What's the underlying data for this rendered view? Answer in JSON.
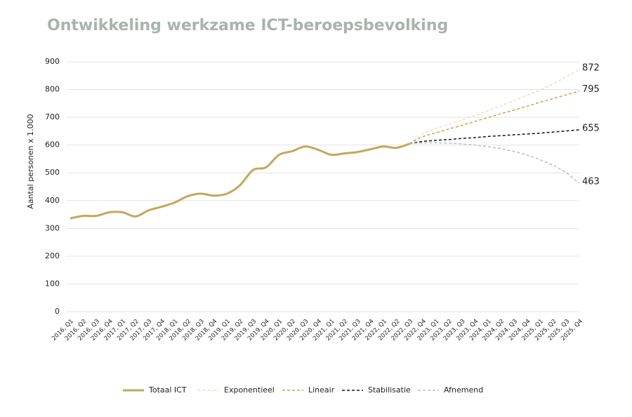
{
  "chart_data": {
    "type": "line",
    "title": "Ontwikkeling werkzame ICT-beroepsbevolking",
    "y_label": "Aantal personen x 1.000",
    "categories": [
      "2016, Q1",
      "2016, Q2",
      "2016, Q3",
      "2016, Q4",
      "2017, Q1",
      "2017, Q2",
      "2017, Q3",
      "2017, Q4",
      "2018, Q1",
      "2018, Q2",
      "2018, Q3",
      "2018, Q4",
      "2019, Q1",
      "2019, Q2",
      "2019, Q3",
      "2019, Q4",
      "2020, Q1",
      "2020, Q2",
      "2020, Q3",
      "2020, Q4",
      "2021, Q1",
      "2021, Q2",
      "2021, Q3",
      "2021, Q4",
      "2022, Q1",
      "2022, Q2",
      "2022, Q3",
      "2022, Q4",
      "2023, Q1",
      "2023, Q2",
      "2023, Q3",
      "2023, Q4",
      "2024, Q1",
      "2024, Q2",
      "2024, Q3",
      "2024, Q4",
      "2025, Q1",
      "2025, Q2",
      "2025, Q3",
      "2025, Q4"
    ],
    "series": [
      {
        "name": "Totaal ICT",
        "color": "#c6a75a",
        "dashed": false,
        "values": [
          336,
          345,
          345,
          358,
          358,
          343,
          365,
          378,
          393,
          416,
          425,
          418,
          425,
          455,
          510,
          520,
          565,
          578,
          595,
          583,
          565,
          570,
          575,
          585,
          595,
          590,
          605,
          null,
          null,
          null,
          null,
          null,
          null,
          null,
          null,
          null,
          null,
          null,
          null,
          null
        ]
      },
      {
        "name": "Exponentieel",
        "color": "#e9dec4",
        "dashed": true,
        "values": [
          null,
          null,
          null,
          null,
          null,
          null,
          null,
          null,
          null,
          null,
          null,
          null,
          null,
          null,
          null,
          null,
          null,
          null,
          null,
          null,
          null,
          null,
          null,
          null,
          null,
          null,
          605,
          640,
          660,
          675,
          690,
          707,
          724,
          742,
          760,
          779,
          799,
          821,
          846,
          872
        ]
      },
      {
        "name": "Lineair",
        "color": "#d0a04a",
        "dashed": true,
        "values": [
          null,
          null,
          null,
          null,
          null,
          null,
          null,
          null,
          null,
          null,
          null,
          null,
          null,
          null,
          null,
          null,
          null,
          null,
          null,
          null,
          null,
          null,
          null,
          null,
          null,
          null,
          605,
          630,
          644,
          658,
          671,
          685,
          699,
          713,
          726,
          740,
          754,
          768,
          781,
          795
        ]
      },
      {
        "name": "Stabilisatie",
        "color": "#111111",
        "dashed": true,
        "values": [
          null,
          null,
          null,
          null,
          null,
          null,
          null,
          null,
          null,
          null,
          null,
          null,
          null,
          null,
          null,
          null,
          null,
          null,
          null,
          null,
          null,
          null,
          null,
          null,
          null,
          null,
          605,
          613,
          617,
          620,
          624,
          627,
          631,
          634,
          637,
          640,
          643,
          647,
          651,
          655
        ]
      },
      {
        "name": "Afnemend",
        "color": "#b9bfc3",
        "dashed": true,
        "values": [
          null,
          null,
          null,
          null,
          null,
          null,
          null,
          null,
          null,
          null,
          null,
          null,
          null,
          null,
          null,
          null,
          null,
          null,
          null,
          null,
          null,
          null,
          null,
          null,
          null,
          null,
          605,
          608,
          608,
          607,
          604,
          600,
          594,
          587,
          577,
          564,
          547,
          527,
          500,
          463
        ]
      }
    ],
    "ylim": [
      0,
      900
    ],
    "yticks": [
      0,
      100,
      200,
      300,
      400,
      500,
      600,
      700,
      800,
      900
    ],
    "grid": true,
    "end_labels": true,
    "legend": "bottom"
  }
}
